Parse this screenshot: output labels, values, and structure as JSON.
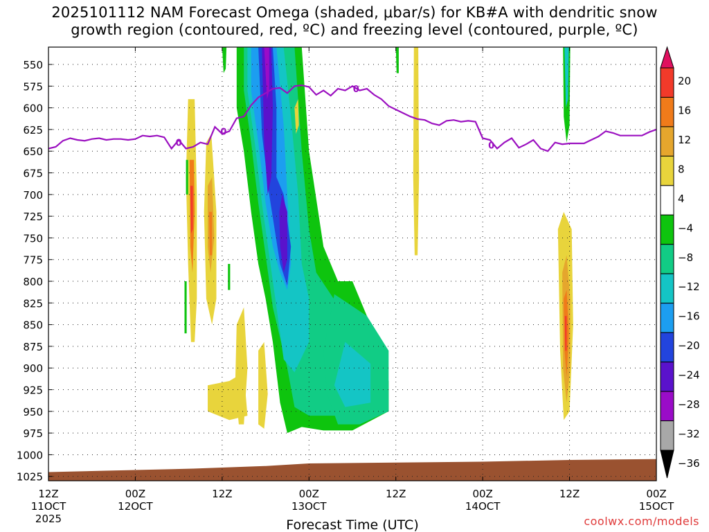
{
  "title_lines": [
    "2025101112 NAM Forecast Omega (shaded, μbar/s) for KB#A with dendritic snow",
    "growth region (contoured, red, ºC) and freezing level (contoured, purple, ºC)"
  ],
  "credit": "coolwx.com/models",
  "chart_data": {
    "type": "heatmap",
    "title": "2025101112 NAM Forecast Omega (shaded, μbar/s) for KB#A with dendritic snow growth region (contoured, red, ºC) and freezing level (contoured, purple, ºC)",
    "xlabel": "Forecast Time (UTC)",
    "ylabel": "",
    "y_axis": {
      "ticks": [
        550,
        575,
        600,
        625,
        650,
        675,
        700,
        725,
        750,
        775,
        800,
        825,
        850,
        875,
        900,
        925,
        950,
        975,
        1000,
        1025
      ],
      "range_hPa": [
        530,
        1030
      ],
      "inverted": true
    },
    "x_axis": {
      "range_hours": [
        0,
        84
      ],
      "ticks": [
        {
          "h": 0,
          "label": "12Z",
          "sub": "11OCT",
          "sub2": "2025"
        },
        {
          "h": 12,
          "label": "00Z",
          "sub": "12OCT"
        },
        {
          "h": 24,
          "label": "12Z",
          "sub": ""
        },
        {
          "h": 36,
          "label": "00Z",
          "sub": "13OCT"
        },
        {
          "h": 48,
          "label": "12Z",
          "sub": ""
        },
        {
          "h": 60,
          "label": "00Z",
          "sub": "14OCT"
        },
        {
          "h": 72,
          "label": "12Z",
          "sub": ""
        },
        {
          "h": 84,
          "label": "00Z",
          "sub": "15OCT"
        }
      ]
    },
    "grid": true,
    "colorbar": {
      "labels": [
        "20",
        "16",
        "12",
        "8",
        "4",
        "−4",
        "−8",
        "−12",
        "−16",
        "−20",
        "−24",
        "−28",
        "−32",
        "−36"
      ],
      "colors": [
        "#e0105f",
        "#f23a2a",
        "#f07b1a",
        "#e5a62d",
        "#e8d43c",
        "#ffffff",
        "#0ec40e",
        "#11cc85",
        "#14c5c5",
        "#1c9ef0",
        "#2244dd",
        "#5a12cc",
        "#9a0cc8",
        "#a8a8a8",
        "#000000"
      ]
    },
    "freezing_level": {
      "color": "#9b10c0",
      "label": "0",
      "points": [
        [
          0,
          647
        ],
        [
          1,
          645
        ],
        [
          2,
          638
        ],
        [
          3,
          635
        ],
        [
          4,
          637
        ],
        [
          5,
          638
        ],
        [
          6,
          636
        ],
        [
          7,
          635
        ],
        [
          8,
          637
        ],
        [
          9,
          636
        ],
        [
          10,
          636
        ],
        [
          11,
          637
        ],
        [
          12,
          636
        ],
        [
          13,
          632
        ],
        [
          14,
          633
        ],
        [
          15,
          632
        ],
        [
          16,
          634
        ],
        [
          17,
          647
        ],
        [
          18,
          637
        ],
        [
          19,
          647
        ],
        [
          20,
          645
        ],
        [
          21,
          640
        ],
        [
          22,
          642
        ],
        [
          23,
          622
        ],
        [
          24,
          630
        ],
        [
          25,
          627
        ],
        [
          26,
          612
        ],
        [
          27,
          610
        ],
        [
          28,
          597
        ],
        [
          29,
          588
        ],
        [
          30,
          583
        ],
        [
          31,
          578
        ],
        [
          32,
          577
        ],
        [
          33,
          583
        ],
        [
          34,
          575
        ],
        [
          35,
          574
        ],
        [
          36,
          576
        ],
        [
          37,
          585
        ],
        [
          38,
          580
        ],
        [
          39,
          586
        ],
        [
          40,
          578
        ],
        [
          41,
          580
        ],
        [
          42,
          575
        ],
        [
          43,
          580
        ],
        [
          44,
          578
        ],
        [
          45,
          585
        ],
        [
          46,
          590
        ],
        [
          47,
          598
        ],
        [
          48,
          602
        ],
        [
          49,
          606
        ],
        [
          50,
          610
        ],
        [
          51,
          613
        ],
        [
          52,
          614
        ],
        [
          53,
          618
        ],
        [
          54,
          620
        ],
        [
          55,
          615
        ],
        [
          56,
          614
        ],
        [
          57,
          616
        ],
        [
          58,
          615
        ],
        [
          59,
          616
        ],
        [
          60,
          635
        ],
        [
          61,
          637
        ],
        [
          62,
          647
        ],
        [
          63,
          640
        ],
        [
          64,
          635
        ],
        [
          65,
          646
        ],
        [
          66,
          642
        ],
        [
          67,
          637
        ],
        [
          68,
          647
        ],
        [
          69,
          650
        ],
        [
          70,
          640
        ],
        [
          71,
          642
        ],
        [
          72,
          641
        ],
        [
          73,
          641
        ],
        [
          74,
          641
        ],
        [
          75,
          637
        ],
        [
          76,
          633
        ],
        [
          77,
          627
        ],
        [
          78,
          629
        ],
        [
          79,
          632
        ],
        [
          80,
          632
        ],
        [
          81,
          632
        ],
        [
          82,
          632
        ],
        [
          83,
          628
        ],
        [
          84,
          625
        ]
      ]
    },
    "omega_features": [
      {
        "name": "main-ascent-band",
        "levels": "-36 to -4",
        "time_range_hours": [
          25,
          47
        ],
        "pressure_range_hPa": [
          530,
          975
        ]
      },
      {
        "name": "descent-11oct-late",
        "levels": "4 to 16",
        "time_range_hours": [
          19,
          23.5
        ],
        "pressure_range_hPa": [
          590,
          870
        ]
      },
      {
        "name": "descent-14oct-late",
        "levels": "4 to 16",
        "time_range_hours": [
          70.5,
          72.5
        ],
        "pressure_range_hPa": [
          720,
          960
        ]
      },
      {
        "name": "ascent-14oct",
        "levels": "-16 to -4",
        "time_range_hours": [
          71,
          72
        ],
        "pressure_range_hPa": [
          530,
          640
        ]
      },
      {
        "name": "descent-13oct-midday",
        "levels": "4 to 8",
        "time_range_hours": [
          50.5,
          51
        ],
        "pressure_range_hPa": [
          530,
          775
        ]
      }
    ],
    "terrain": {
      "color": "#9a5230",
      "surface_pressure_hPa": [
        [
          0,
          1020
        ],
        [
          10,
          1018
        ],
        [
          20,
          1016
        ],
        [
          30,
          1013
        ],
        [
          36,
          1010
        ],
        [
          48,
          1009
        ],
        [
          60,
          1008
        ],
        [
          72,
          1006
        ],
        [
          84,
          1005
        ]
      ]
    }
  }
}
